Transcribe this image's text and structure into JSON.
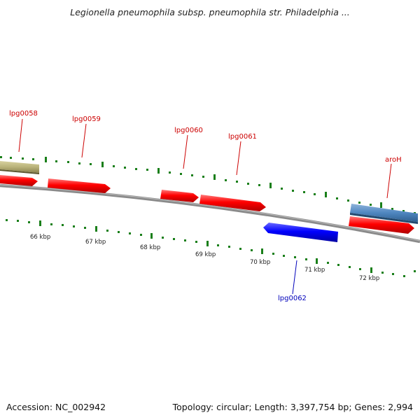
{
  "title": "Legionella pneumophila subsp. pneumophila str. Philadelphia ...",
  "footer": {
    "accession": "Accession: NC_002942",
    "summary": "Topology: circular; Length: 3,397,754 bp; Genes: 2,994"
  },
  "colors": {
    "forward_gene": "#ff0000",
    "reverse_gene": "#0000ff",
    "other_feature_blue": "#4f86c0",
    "other_feature_olive": "#b9b27a",
    "backbone": "#8a8a8a",
    "tick": "#1a7f1a",
    "forward_label": "#cc0000",
    "reverse_label": "#0000bb"
  },
  "kbp_labels": [
    "66 kbp",
    "67 kbp",
    "68 kbp",
    "69 kbp",
    "70 kbp",
    "71 kbp",
    "72 kbp"
  ],
  "gene_labels": [
    "lpg0058",
    "lpg0059",
    "lpg0060",
    "lpg0061",
    "aroH",
    "lpg0062"
  ]
}
